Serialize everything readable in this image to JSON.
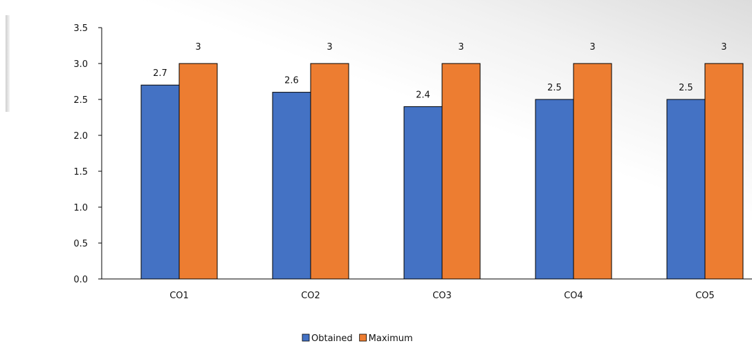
{
  "chart_data": {
    "type": "bar",
    "categories": [
      "CO1",
      "CO2",
      "CO3",
      "CO4",
      "CO5"
    ],
    "series": [
      {
        "name": "Obtained",
        "values": [
          2.7,
          2.6,
          2.4,
          2.5,
          2.5
        ],
        "labels": [
          "2.7",
          "2.6",
          "2.4",
          "2.5",
          "2.5"
        ],
        "color": "#4472c4"
      },
      {
        "name": "Maximum",
        "values": [
          3,
          3,
          3,
          3,
          3
        ],
        "labels": [
          "3",
          "3",
          "3",
          "3",
          "3"
        ],
        "color": "#ed7d31"
      }
    ],
    "ylim": [
      0,
      3.5
    ],
    "yticks": [
      "0.0",
      "0.5",
      "1.0",
      "1.5",
      "2.0",
      "2.5",
      "3.0",
      "3.5"
    ],
    "title": "",
    "xlabel": "",
    "ylabel": "",
    "grid": false,
    "legend_position": "bottom-center"
  }
}
